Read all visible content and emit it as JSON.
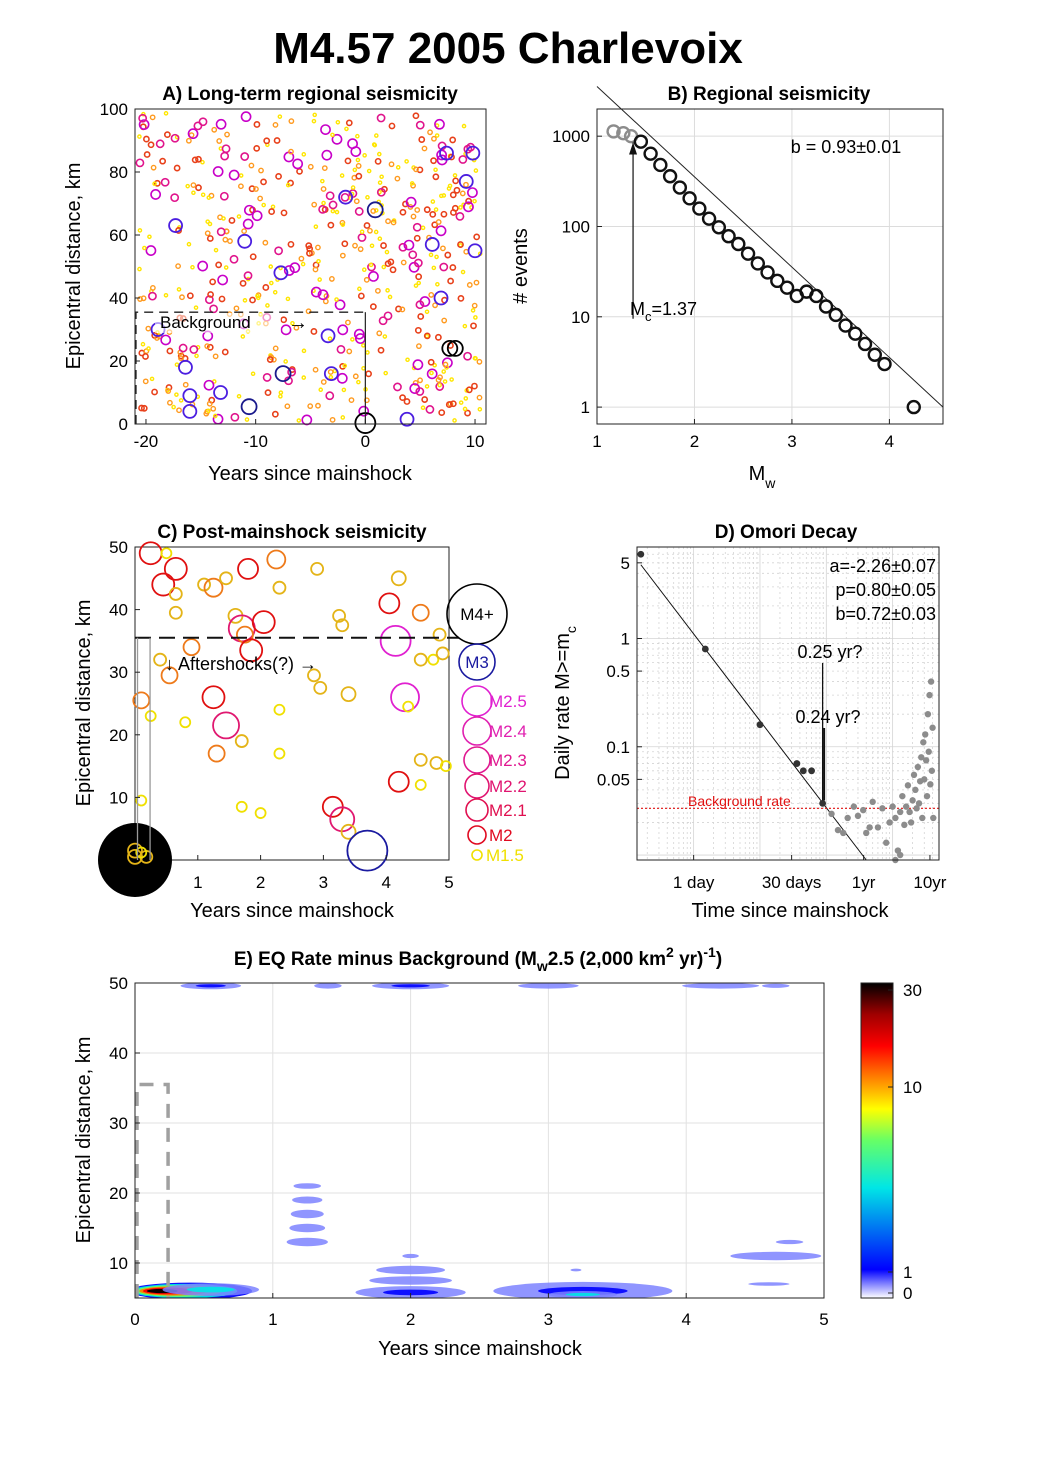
{
  "figure": {
    "title": "M4.57 2005 Charlevoix"
  },
  "chart_data": [
    {
      "id": "A",
      "type": "scatter",
      "title": "A) Long-term regional seismicity",
      "xlabel": "Years since mainshock",
      "ylabel": "Epicentral distance, km",
      "xlim": [
        -21,
        11
      ],
      "ylim": [
        0,
        100
      ],
      "xticks": [
        -20,
        -10,
        0,
        10
      ],
      "yticks": [
        0,
        20,
        40,
        60,
        80,
        100
      ],
      "annotation": "Background",
      "arrow": "→",
      "background_box": {
        "x": [
          -21,
          0
        ],
        "y": [
          0,
          35.5
        ]
      },
      "magnitude_colors": [
        "#ffe600",
        "#ff9a1f",
        "#e8401a",
        "#e0148c",
        "#c800c8",
        "#4b1ee0",
        "#1a1a8c",
        "#000000"
      ],
      "big_events": [
        {
          "x": -18.9,
          "y": 30,
          "m": 3
        },
        {
          "x": -17.3,
          "y": 63,
          "m": 3
        },
        {
          "x": -16.4,
          "y": 18,
          "m": 3
        },
        {
          "x": -16.0,
          "y": 9,
          "m": 3
        },
        {
          "x": -16.0,
          "y": 4,
          "m": 3
        },
        {
          "x": -13.2,
          "y": 10,
          "m": 3
        },
        {
          "x": -10.6,
          "y": 5.5,
          "m": 3.2
        },
        {
          "x": -11.0,
          "y": 58,
          "m": 3
        },
        {
          "x": -7.5,
          "y": 16,
          "m": 3.2
        },
        {
          "x": -7.7,
          "y": 48,
          "m": 3
        },
        {
          "x": -3.4,
          "y": 28,
          "m": 3
        },
        {
          "x": -1.8,
          "y": 72,
          "m": 3
        },
        {
          "x": -3.1,
          "y": 16,
          "m": 3
        },
        {
          "x": 0.9,
          "y": 68,
          "m": 3.2
        },
        {
          "x": 3.8,
          "y": 1.5,
          "m": 3
        },
        {
          "x": 6.1,
          "y": 57,
          "m": 3
        },
        {
          "x": 7.4,
          "y": 86,
          "m": 3
        },
        {
          "x": 6.9,
          "y": 40,
          "m": 3
        },
        {
          "x": 9.2,
          "y": 77,
          "m": 3
        },
        {
          "x": 9.8,
          "y": 86,
          "m": 3
        },
        {
          "x": 10.0,
          "y": 55,
          "m": 3
        },
        {
          "x": 7.7,
          "y": 24,
          "m": 3.3
        },
        {
          "x": 8.2,
          "y": 24,
          "m": 3.3
        },
        {
          "x": 0.0,
          "y": 0.3,
          "m": 4.57
        }
      ]
    },
    {
      "id": "B",
      "type": "scatter",
      "title": "B) Regional seismicity",
      "xlabel": "M",
      "xlabel_sub": "w",
      "ylabel": "# events",
      "xlim": [
        1,
        4.55
      ],
      "ylim_log": [
        0.65,
        2000
      ],
      "xticks": [
        1,
        2,
        3,
        4
      ],
      "yticks": [
        1,
        10,
        100,
        1000
      ],
      "b_value_label": "b = 0.93±0.01",
      "mc_label_main": "M",
      "mc_label_sub": "c",
      "mc_label_value": "=1.37",
      "mc": 1.37,
      "fit_line": {
        "x": [
          1.0,
          4.55
        ],
        "log10n": [
          3.55,
          0.0
        ]
      },
      "points": {
        "below_mc": [
          [
            1.17,
            1130
          ],
          [
            1.27,
            1080
          ],
          [
            1.35,
            1000
          ]
        ],
        "mw": [
          1.45,
          1.55,
          1.65,
          1.75,
          1.85,
          1.95,
          2.05,
          2.15,
          2.25,
          2.35,
          2.45,
          2.55,
          2.65,
          2.75,
          2.85,
          2.95,
          3.05,
          3.15,
          3.25,
          3.35,
          3.45,
          3.55,
          3.65,
          3.75,
          3.85,
          3.95,
          4.25
        ],
        "count": [
          870,
          640,
          480,
          360,
          270,
          205,
          158,
          122,
          98,
          78,
          64,
          50,
          39,
          31,
          25,
          21,
          17,
          19,
          17,
          13,
          10.5,
          8,
          6.5,
          5,
          3.8,
          3,
          1
        ]
      }
    },
    {
      "id": "C",
      "type": "scatter",
      "title": "C) Post-mainshock seismicity",
      "xlabel": "Years since mainshock",
      "ylabel": "Epicentral distance, km",
      "xlim": [
        0,
        5
      ],
      "ylim": [
        0,
        50
      ],
      "xticks": [
        1,
        2,
        3,
        4,
        5
      ],
      "yticks": [
        10,
        20,
        30,
        40,
        50
      ],
      "annotation": "↓ Aftershocks(?) →",
      "aftershock_distance_km": 35.5,
      "legend": [
        "M4+",
        "M3",
        "M2.5",
        "M2.4",
        "M2.3",
        "M2.2",
        "M2.1",
        "M2",
        "M1.5"
      ],
      "legend_colors": [
        "#000000",
        "#1a1aa0",
        "#e020d0",
        "#e020b0",
        "#e01890",
        "#e01470",
        "#e01050",
        "#e00a20",
        "#f0e000"
      ],
      "events": [
        {
          "x": 0.25,
          "y": 49,
          "m": 2.1
        },
        {
          "x": 0.5,
          "y": 49,
          "m": 1.5
        },
        {
          "x": 0.45,
          "y": 44,
          "m": 2.1
        },
        {
          "x": 0.65,
          "y": 46.5,
          "m": 2.1
        },
        {
          "x": 0.65,
          "y": 42.5,
          "m": 1.6
        },
        {
          "x": 0.65,
          "y": 39.5,
          "m": 1.6
        },
        {
          "x": 1.1,
          "y": 44,
          "m": 1.6
        },
        {
          "x": 1.25,
          "y": 43.5,
          "m": 1.9
        },
        {
          "x": 1.45,
          "y": 45,
          "m": 1.6
        },
        {
          "x": 1.8,
          "y": 46.5,
          "m": 2.0
        },
        {
          "x": 2.25,
          "y": 48,
          "m": 1.9
        },
        {
          "x": 2.3,
          "y": 43.5,
          "m": 1.6
        },
        {
          "x": 2.9,
          "y": 46.5,
          "m": 1.6
        },
        {
          "x": 3.25,
          "y": 39,
          "m": 1.6
        },
        {
          "x": 3.3,
          "y": 37.5,
          "m": 1.6
        },
        {
          "x": 4.2,
          "y": 45,
          "m": 1.7
        },
        {
          "x": 4.05,
          "y": 41,
          "m": 2.0
        },
        {
          "x": 4.55,
          "y": 39.5,
          "m": 1.8
        },
        {
          "x": 4.15,
          "y": 35,
          "m": 2.5
        },
        {
          "x": 4.85,
          "y": 36,
          "m": 1.6
        },
        {
          "x": 1.6,
          "y": 39,
          "m": 1.7
        },
        {
          "x": 1.7,
          "y": 37,
          "m": 2.3
        },
        {
          "x": 1.75,
          "y": 36,
          "m": 1.8
        },
        {
          "x": 1.85,
          "y": 33.5,
          "m": 2.1
        },
        {
          "x": 2.05,
          "y": 38,
          "m": 2.1
        },
        {
          "x": 0.9,
          "y": 34,
          "m": 1.8
        },
        {
          "x": 0.4,
          "y": 32,
          "m": 1.6
        },
        {
          "x": 0.55,
          "y": 29.5,
          "m": 1.8
        },
        {
          "x": 0.1,
          "y": 25.5,
          "m": 1.8
        },
        {
          "x": 0.25,
          "y": 23,
          "m": 1.5
        },
        {
          "x": 0.8,
          "y": 22,
          "m": 1.5
        },
        {
          "x": 1.25,
          "y": 26,
          "m": 2.1
        },
        {
          "x": 1.45,
          "y": 21.5,
          "m": 2.3
        },
        {
          "x": 1.3,
          "y": 17,
          "m": 1.8
        },
        {
          "x": 1.7,
          "y": 19,
          "m": 1.6
        },
        {
          "x": 2.85,
          "y": 29.5,
          "m": 1.6
        },
        {
          "x": 2.95,
          "y": 27.5,
          "m": 1.6
        },
        {
          "x": 3.4,
          "y": 26.5,
          "m": 1.7
        },
        {
          "x": 2.3,
          "y": 24,
          "m": 1.5
        },
        {
          "x": 2.3,
          "y": 17,
          "m": 1.5
        },
        {
          "x": 4.3,
          "y": 26,
          "m": 2.4
        },
        {
          "x": 4.35,
          "y": 24.5,
          "m": 1.5
        },
        {
          "x": 4.55,
          "y": 32,
          "m": 1.6
        },
        {
          "x": 4.75,
          "y": 32,
          "m": 1.5
        },
        {
          "x": 4.9,
          "y": 33,
          "m": 1.6
        },
        {
          "x": 4.2,
          "y": 12.5,
          "m": 2.0
        },
        {
          "x": 4.55,
          "y": 16,
          "m": 1.6
        },
        {
          "x": 4.8,
          "y": 15.5,
          "m": 1.6
        },
        {
          "x": 4.95,
          "y": 15,
          "m": 1.5
        },
        {
          "x": 4.55,
          "y": 12,
          "m": 1.5
        },
        {
          "x": 3.15,
          "y": 8.5,
          "m": 2.0
        },
        {
          "x": 3.3,
          "y": 6.5,
          "m": 2.2
        },
        {
          "x": 3.4,
          "y": 4.5,
          "m": 1.7
        },
        {
          "x": 1.7,
          "y": 8.5,
          "m": 1.5
        },
        {
          "x": 2.0,
          "y": 7.5,
          "m": 1.5
        },
        {
          "x": 0.1,
          "y": 9.5,
          "m": 1.5
        },
        {
          "x": 3.7,
          "y": 1.5,
          "m": 3.0
        },
        {
          "x": 0.0,
          "y": 0.0,
          "m": 4.57
        },
        {
          "x": 0.0,
          "y": 1.5,
          "m": 1.7
        },
        {
          "x": 0.0,
          "y": 0.5,
          "m": 1.7
        },
        {
          "x": 0.18,
          "y": 0.5,
          "m": 1.6
        },
        {
          "x": 0.1,
          "y": 1.2,
          "m": 1.5
        }
      ]
    },
    {
      "id": "D",
      "type": "scatter",
      "title": "D) Omori Decay",
      "xlabel": "Time since mainshock",
      "ylabel": "Daily rate M>=m",
      "ylabel_sub": "c",
      "xlim_log_days": [
        0.14,
        5000
      ],
      "ylim_log": [
        0.009,
        7
      ],
      "xtick_labels": [
        "1 day",
        "30 days",
        "1yr",
        "10yr"
      ],
      "xtick_days": [
        1,
        30,
        365,
        3650
      ],
      "ytick_labels": [
        "0.05",
        "0.1",
        "0.5",
        "1",
        "5"
      ],
      "yticks": [
        0.05,
        0.1,
        0.5,
        1,
        5
      ],
      "params": [
        "a=-2.26±0.07",
        "p=0.80±0.05",
        "b=0.72±0.03"
      ],
      "background_label": "Background rate",
      "background_rate": 0.027,
      "annot_upper": "0.25 yr?",
      "annot_lower": "0.24 yr?",
      "annot_days": 88,
      "fit_line": {
        "t_days": [
          0.16,
          400
        ],
        "rate": [
          4.8,
          0.009
        ]
      },
      "aftershock_rates": [
        [
          0.16,
          6
        ],
        [
          1.5,
          0.8
        ],
        [
          10,
          0.16
        ],
        [
          36,
          0.07
        ],
        [
          45,
          0.06
        ],
        [
          60,
          0.06
        ],
        [
          88,
          0.03
        ]
      ],
      "background_points": [
        [
          120,
          0.024
        ],
        [
          150,
          0.017
        ],
        [
          180,
          0.016
        ],
        [
          210,
          0.022
        ],
        [
          260,
          0.028
        ],
        [
          300,
          0.023
        ],
        [
          360,
          0.026
        ],
        [
          400,
          0.016
        ],
        [
          450,
          0.018
        ],
        [
          500,
          0.031
        ],
        [
          600,
          0.018
        ],
        [
          700,
          0.027
        ],
        [
          800,
          0.013
        ],
        [
          900,
          0.02
        ],
        [
          1000,
          0.028
        ],
        [
          1100,
          0.022
        ],
        [
          1200,
          0.011
        ],
        [
          1300,
          0.025
        ],
        [
          1400,
          0.035
        ],
        [
          1500,
          0.019
        ],
        [
          1600,
          0.028
        ],
        [
          1700,
          0.044
        ],
        [
          1800,
          0.025
        ],
        [
          1900,
          0.02
        ],
        [
          2000,
          0.032
        ],
        [
          2100,
          0.055
        ],
        [
          2200,
          0.04
        ],
        [
          2300,
          0.027
        ],
        [
          2400,
          0.065
        ],
        [
          2500,
          0.03
        ],
        [
          2600,
          0.048
        ],
        [
          2700,
          0.08
        ],
        [
          2800,
          0.022
        ],
        [
          2900,
          0.11
        ],
        [
          3000,
          0.05
        ],
        [
          3100,
          0.13
        ],
        [
          3200,
          0.075
        ],
        [
          3300,
          0.035
        ],
        [
          3400,
          0.2
        ],
        [
          3500,
          0.09
        ],
        [
          3600,
          0.3
        ],
        [
          3700,
          0.045
        ],
        [
          3800,
          0.4
        ],
        [
          3900,
          0.06
        ],
        [
          4000,
          0.15
        ],
        [
          4100,
          0.022
        ],
        [
          1100,
          0.009
        ],
        [
          1300,
          0.01
        ]
      ]
    },
    {
      "id": "E",
      "type": "heatmap",
      "title_main": "E) EQ Rate minus Background (M",
      "title_sub": "w",
      "title_mid": "2.5  (2,000 km",
      "title_sup1": "2",
      "title_end": " yr)",
      "title_sup2": "-1",
      "title_close": ")",
      "xlabel": "Years since mainshock",
      "ylabel": "Epicentral distance, km",
      "xlim": [
        0,
        5
      ],
      "ylim": [
        5,
        50
      ],
      "xticks": [
        0,
        1,
        2,
        3,
        4,
        5
      ],
      "yticks": [
        10,
        20,
        30,
        40,
        50
      ],
      "aftershock_box": {
        "x": [
          0,
          0.24
        ],
        "y": [
          5,
          35.5
        ]
      },
      "colorbar": {
        "ticks": [
          0,
          1,
          10,
          30
        ],
        "scale": "log"
      },
      "blobs": [
        {
          "x": 0.4,
          "y": 6,
          "rx": 0.45,
          "ry": 1.2,
          "v": 30
        },
        {
          "x": 0.55,
          "y": 6.2,
          "rx": 0.35,
          "ry": 0.9,
          "v": 4
        },
        {
          "x": 1.25,
          "y": 21,
          "rx": 0.1,
          "ry": 0.4,
          "v": 1
        },
        {
          "x": 1.25,
          "y": 19,
          "rx": 0.11,
          "ry": 0.5,
          "v": 1
        },
        {
          "x": 1.25,
          "y": 17,
          "rx": 0.12,
          "ry": 0.6,
          "v": 1
        },
        {
          "x": 1.25,
          "y": 15,
          "rx": 0.13,
          "ry": 0.6,
          "v": 1
        },
        {
          "x": 1.25,
          "y": 13,
          "rx": 0.15,
          "ry": 0.6,
          "v": 1
        },
        {
          "x": 2.0,
          "y": 11,
          "rx": 0.06,
          "ry": 0.3,
          "v": 1
        },
        {
          "x": 2.0,
          "y": 9,
          "rx": 0.25,
          "ry": 0.6,
          "v": 1
        },
        {
          "x": 2.0,
          "y": 7.5,
          "rx": 0.3,
          "ry": 0.6,
          "v": 1
        },
        {
          "x": 2.0,
          "y": 5.8,
          "rx": 0.4,
          "ry": 0.9,
          "v": 2
        },
        {
          "x": 3.25,
          "y": 6,
          "rx": 0.65,
          "ry": 1.3,
          "v": 2
        },
        {
          "x": 3.25,
          "y": 5.5,
          "rx": 0.25,
          "ry": 0.5,
          "v": 4
        },
        {
          "x": 3.2,
          "y": 9,
          "rx": 0.04,
          "ry": 0.2,
          "v": 1
        },
        {
          "x": 4.75,
          "y": 13,
          "rx": 0.1,
          "ry": 0.3,
          "v": 1
        },
        {
          "x": 4.65,
          "y": 11,
          "rx": 0.33,
          "ry": 0.6,
          "v": 1
        },
        {
          "x": 4.6,
          "y": 7,
          "rx": 0.15,
          "ry": 0.25,
          "v": 1
        },
        {
          "x": 0.55,
          "y": 49.6,
          "rx": 0.22,
          "ry": 0.5,
          "v": 2
        },
        {
          "x": 1.4,
          "y": 49.6,
          "rx": 0.1,
          "ry": 0.4,
          "v": 1
        },
        {
          "x": 2.0,
          "y": 49.6,
          "rx": 0.28,
          "ry": 0.5,
          "v": 2
        },
        {
          "x": 3.0,
          "y": 49.6,
          "rx": 0.22,
          "ry": 0.4,
          "v": 1
        },
        {
          "x": 4.25,
          "y": 49.6,
          "rx": 0.28,
          "ry": 0.4,
          "v": 1
        },
        {
          "x": 4.65,
          "y": 49.6,
          "rx": 0.1,
          "ry": 0.3,
          "v": 1
        }
      ]
    }
  ]
}
